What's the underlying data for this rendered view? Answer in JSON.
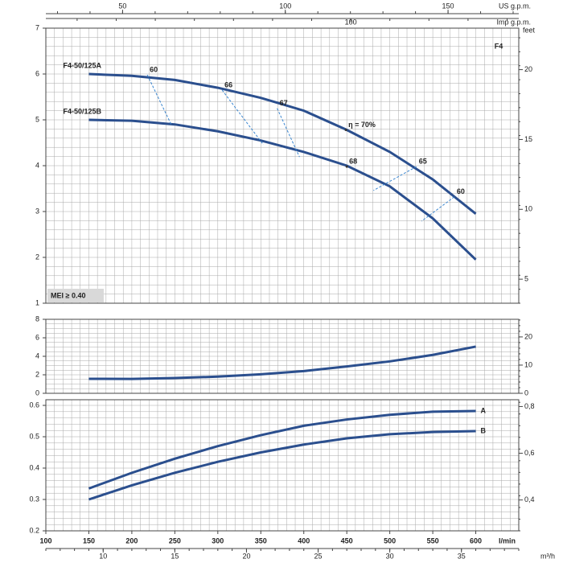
{
  "chart_data": [
    {
      "type": "line",
      "title": "F4",
      "xlim": [
        100,
        650
      ],
      "xminor": 10,
      "top_axes": [
        {
          "label": "US g.p.m.",
          "xlim": [
            26.42,
            171.73
          ],
          "xticks": [
            50,
            100,
            150
          ],
          "minor": 10
        },
        {
          "label": "Imp g.p.m.",
          "xlim": [
            22.0,
            142.98
          ],
          "xticks": [
            100
          ],
          "minor": 10
        }
      ],
      "ylim": [
        1,
        7
      ],
      "yticks": [
        1,
        2,
        3,
        4,
        5,
        6,
        7
      ],
      "yminor": 0.2,
      "y2lim": [
        3.28,
        22.97
      ],
      "y2ticks": [
        5,
        10,
        15,
        20
      ],
      "y2label": "feet",
      "y2minor": 1,
      "x": [
        150,
        200,
        250,
        300,
        350,
        400,
        450,
        500,
        550,
        600
      ],
      "name_position": "start",
      "series": [
        {
          "name": "F4-50/125A",
          "color": "#2b4f8e",
          "values": [
            6.0,
            5.96,
            5.87,
            5.7,
            5.48,
            5.2,
            4.78,
            4.3,
            3.7,
            2.95
          ]
        },
        {
          "name": "F4-50/125B",
          "color": "#2b4f8e",
          "values": [
            5.0,
            4.98,
            4.9,
            4.75,
            4.55,
            4.3,
            4.0,
            3.55,
            2.85,
            1.95
          ]
        }
      ],
      "note": "MEI ≥ 0.40",
      "efficiency": [
        {
          "label": "60",
          "x": [
            218,
            246
          ],
          "y": [
            5.98,
            4.89
          ]
        },
        {
          "label": "66",
          "x": [
            305,
            353
          ],
          "y": [
            5.65,
            4.46
          ]
        },
        {
          "label": "67",
          "x": [
            369,
            395
          ],
          "y": [
            5.25,
            4.19
          ]
        },
        {
          "label": "η = 70%",
          "x": [
            449
          ],
          "y": [
            4.78
          ]
        },
        {
          "label": "68",
          "x": [
            450
          ],
          "y": [
            3.98
          ]
        },
        {
          "label": "65",
          "x": [
            531,
            481
          ],
          "y": [
            3.98,
            3.46
          ]
        },
        {
          "label": "60",
          "x": [
            575,
            537
          ],
          "y": [
            3.32,
            2.79
          ]
        }
      ]
    },
    {
      "type": "line",
      "xlim": [
        100,
        650
      ],
      "xminor": 10,
      "ylim": [
        0,
        8
      ],
      "yticks": [
        0,
        2,
        4,
        6,
        8
      ],
      "yminor": 0.5,
      "y2lim": [
        0,
        26.25
      ],
      "y2ticks": [
        0,
        10,
        20
      ],
      "y2minor": 2,
      "x": [
        150,
        200,
        250,
        300,
        350,
        400,
        450,
        500,
        550,
        600
      ],
      "series": [
        {
          "color": "#2b4f8e",
          "values": [
            1.57,
            1.55,
            1.65,
            1.8,
            2.05,
            2.4,
            2.9,
            3.45,
            4.15,
            5.05
          ]
        }
      ]
    },
    {
      "type": "line",
      "xlim": [
        100,
        650
      ],
      "xminor": 10,
      "xticks": [
        100,
        150,
        200,
        250,
        300,
        350,
        400,
        450,
        500,
        550,
        600
      ],
      "xlabel": "l/min",
      "bottom_axis": {
        "label": "m³/h",
        "xlim": [
          6,
          39
        ],
        "xticks": [
          10,
          15,
          20,
          25,
          30,
          35
        ],
        "minor": 1
      },
      "ylim": [
        0.2,
        0.618
      ],
      "yticks": [
        0.2,
        0.3,
        0.4,
        0.5,
        0.6
      ],
      "yminor": 0.02,
      "y2lim": [
        0.268,
        0.829
      ],
      "y2ticks": [
        {
          "value": 0.4,
          "label": "0,4"
        },
        {
          "value": 0.6,
          "label": "0,6"
        },
        {
          "value": 0.8,
          "label": "0,8"
        }
      ],
      "y2minor": 0.05,
      "x": [
        150,
        200,
        250,
        300,
        350,
        400,
        450,
        500,
        550,
        600
      ],
      "name_position": "end",
      "series": [
        {
          "name": "A",
          "color": "#2b4f8e",
          "values": [
            0.335,
            0.385,
            0.43,
            0.47,
            0.505,
            0.535,
            0.555,
            0.57,
            0.58,
            0.582
          ]
        },
        {
          "name": "B",
          "color": "#2b4f8e",
          "values": [
            0.3,
            0.345,
            0.385,
            0.42,
            0.45,
            0.475,
            0.495,
            0.508,
            0.515,
            0.518
          ]
        }
      ]
    }
  ]
}
